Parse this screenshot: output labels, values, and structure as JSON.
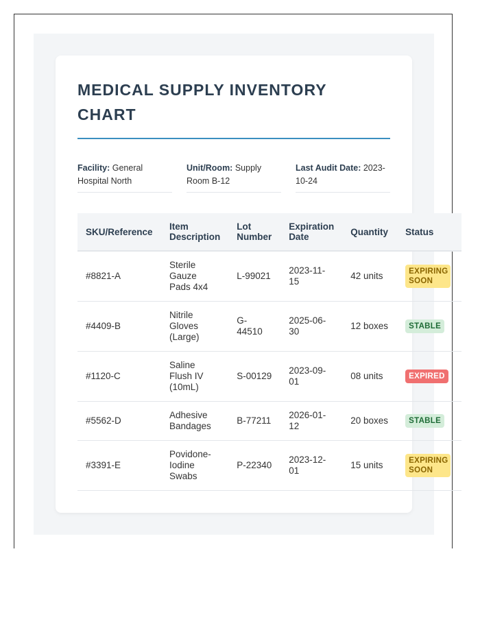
{
  "document": {
    "title": "MEDICAL SUPPLY INVENTORY CHART"
  },
  "meta": {
    "facility": {
      "label": "Facility:",
      "value": "General Hospital North"
    },
    "unit": {
      "label": "Unit/Room:",
      "value": "Supply Room B-12"
    },
    "audit": {
      "label": "Last Audit Date:",
      "value": "2023-10-24"
    }
  },
  "table": {
    "headers": [
      "SKU/Reference",
      "Item Description",
      "Lot Number",
      "Expiration Date",
      "Quantity",
      "Status"
    ],
    "rows": [
      {
        "sku": "#8821-A",
        "item": "Sterile Gauze Pads 4x4",
        "lot": "L-99021",
        "expiration": "2023-11-15",
        "quantity": "42 units",
        "status": "EXPIRING SOON",
        "status_type": "expiring"
      },
      {
        "sku": "#4409-B",
        "item": "Nitrile Gloves (Large)",
        "lot": "G-44510",
        "expiration": "2025-06-30",
        "quantity": "12 boxes",
        "status": "STABLE",
        "status_type": "stable"
      },
      {
        "sku": "#1120-C",
        "item": "Saline Flush IV (10mL)",
        "lot": "S-00129",
        "expiration": "2023-09-01",
        "quantity": "08 units",
        "status": "EXPIRED",
        "status_type": "expired"
      },
      {
        "sku": "#5562-D",
        "item": "Adhesive Bandages",
        "lot": "B-77211",
        "expiration": "2026-01-12",
        "quantity": "20 boxes",
        "status": "STABLE",
        "status_type": "stable"
      },
      {
        "sku": "#3391-E",
        "item": "Povidone-Iodine Swabs",
        "lot": "P-22340",
        "expiration": "2023-12-01",
        "quantity": "15 units",
        "status": "EXPIRING SOON",
        "status_type": "expiring"
      }
    ]
  },
  "colors": {
    "title": "#2c3e50",
    "accent_rule": "#3a8fc0",
    "expiring_bg": "#fde68a",
    "stable_bg": "#d4edda",
    "expired_bg": "#f07070"
  }
}
